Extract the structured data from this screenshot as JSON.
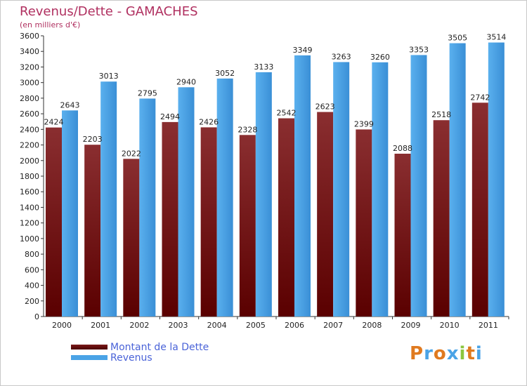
{
  "chart_data": {
    "type": "bar",
    "title": "Revenus/Dette - GAMACHES",
    "subtitle": "(en milliers d'€)",
    "categories": [
      "2000",
      "2001",
      "2002",
      "2003",
      "2004",
      "2005",
      "2006",
      "2007",
      "2008",
      "2009",
      "2010",
      "2011"
    ],
    "series": [
      {
        "name": "Montant de la Dette",
        "color": "#7a1a1a",
        "values": [
          2424,
          2203,
          2022,
          2494,
          2426,
          2328,
          2542,
          2623,
          2399,
          2088,
          2518,
          2742
        ]
      },
      {
        "name": "Revenus",
        "color": "#4aa3e6",
        "values": [
          2643,
          3013,
          2795,
          2940,
          3052,
          3133,
          3349,
          3263,
          3260,
          3353,
          3505,
          3514
        ]
      }
    ],
    "ylim": [
      0,
      3600
    ],
    "yticks": [
      0,
      200,
      400,
      600,
      800,
      1000,
      1200,
      1400,
      1600,
      1800,
      2000,
      2200,
      2400,
      2600,
      2800,
      3000,
      3200,
      3400,
      3600
    ],
    "grid": false,
    "legend_position": "bottom-left"
  },
  "logo": {
    "text": "Proxiti",
    "letters": [
      {
        "ch": "P",
        "color": "#e07a1f"
      },
      {
        "ch": "r",
        "color": "#4aa3e6"
      },
      {
        "ch": "o",
        "color": "#e07a1f"
      },
      {
        "ch": "x",
        "color": "#4aa3e6"
      },
      {
        "ch": "i",
        "color": "#8cc63f"
      },
      {
        "ch": "t",
        "color": "#e07a1f"
      },
      {
        "ch": "i",
        "color": "#4aa3e6"
      }
    ]
  }
}
